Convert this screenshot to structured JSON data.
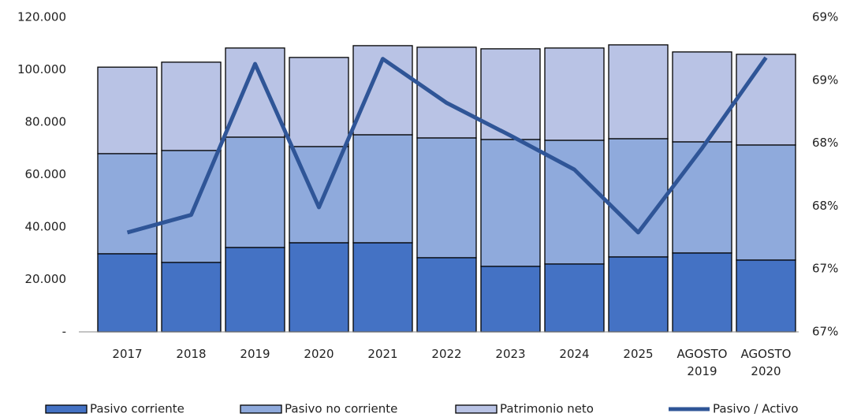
{
  "chart_data": {
    "type": "bar",
    "categories": [
      "2017",
      "2018",
      "2019",
      "2020",
      "2021",
      "2022",
      "2023",
      "2024",
      "2025",
      "AGOSTO 2019",
      "AGOSTO 2020"
    ],
    "series": [
      {
        "name": "Pasivo corriente",
        "color": "#4472c4",
        "values": [
          29800,
          26500,
          32200,
          34000,
          34000,
          28300,
          25000,
          25900,
          28600,
          30100,
          27400
        ]
      },
      {
        "name": "Pasivo no corriente",
        "color": "#8faadc",
        "values": [
          38200,
          42700,
          42100,
          36700,
          41200,
          45700,
          48400,
          47200,
          45100,
          42400,
          43900
        ]
      },
      {
        "name": "Patrimonio neto",
        "color": "#b9c3e5",
        "values": [
          33000,
          33700,
          34000,
          34000,
          34000,
          34600,
          34600,
          35200,
          35800,
          34300,
          34600
        ]
      },
      {
        "name": "Pasivo / Activo",
        "color": "#2f5597",
        "type": "line",
        "axis": "y2",
        "values": [
          67.29,
          67.43,
          68.63,
          67.49,
          68.67,
          68.32,
          68.06,
          67.79,
          67.29,
          67.96,
          68.68
        ]
      }
    ],
    "stacked": true,
    "ylim": [
      0,
      120000
    ],
    "yticks": [
      {
        "value": 0,
        "label": "-"
      },
      {
        "value": 20000,
        "label": "20.000"
      },
      {
        "value": 40000,
        "label": "40.000"
      },
      {
        "value": 60000,
        "label": "60.000"
      },
      {
        "value": 80000,
        "label": "80.000"
      },
      {
        "value": 100000,
        "label": "100.000"
      },
      {
        "value": 120000,
        "label": "120.000"
      }
    ],
    "y2lim": [
      66.5,
      69
    ],
    "y2ticks": [
      {
        "value": 66.5,
        "label": "67%"
      },
      {
        "value": 67,
        "label": "67%"
      },
      {
        "value": 67.5,
        "label": "68%"
      },
      {
        "value": 68,
        "label": "68%"
      },
      {
        "value": 68.5,
        "label": "69%"
      },
      {
        "value": 69,
        "label": "69%"
      }
    ],
    "legend": "bottom"
  }
}
